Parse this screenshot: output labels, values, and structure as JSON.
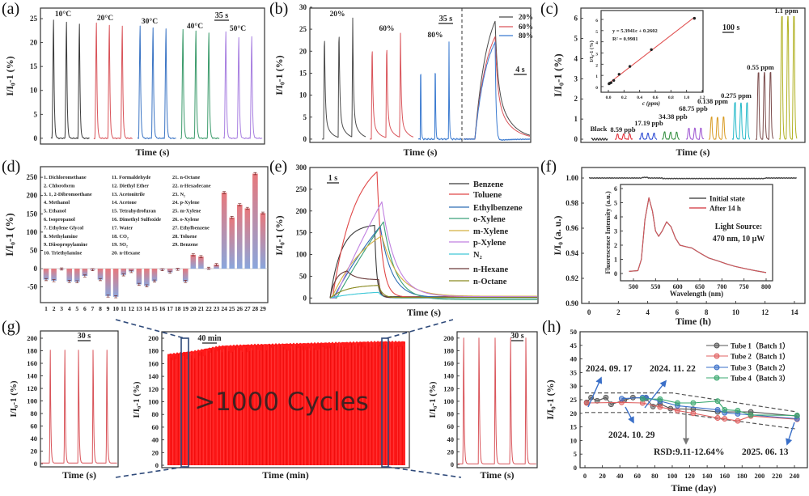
{
  "figure": {
    "panel_labels": [
      "(a)",
      "(b)",
      "(c)",
      "(d)",
      "(e)",
      "(f)",
      "(g)",
      "(h)"
    ]
  },
  "chart_data": [
    {
      "type": "line",
      "ylabel": "I/I₀-1 (%)",
      "xlabel": "Time (s)",
      "ylim": [
        -1,
        27
      ],
      "yticks": [
        "0",
        "5",
        "10",
        "15",
        "20",
        "25"
      ],
      "scale_bar": "35 s",
      "series": [
        {
          "name": "10°C",
          "color": "#3c3c3c",
          "peaks": [
            24.7,
            24.2,
            23.9
          ]
        },
        {
          "name": "20°C",
          "color": "#d9545a",
          "peaks": [
            24.1,
            23.6,
            23.4
          ]
        },
        {
          "name": "30°C",
          "color": "#3a74c4",
          "peaks": [
            23.5,
            23.0,
            22.8
          ]
        },
        {
          "name": "40°C",
          "color": "#3a9a6a",
          "peaks": [
            22.7,
            22.5,
            22.0
          ]
        },
        {
          "name": "50°C",
          "color": "#a77ee0",
          "peaks": [
            22.3,
            21.0,
            21.3
          ]
        }
      ]
    },
    {
      "type": "line",
      "ylabel": "I/I₀-1 (%)",
      "xlabel": "Time (s)",
      "ylim": [
        0,
        30
      ],
      "yticks": [
        "0",
        "5",
        "10",
        "15",
        "20",
        "25",
        "30"
      ],
      "scale_bar_left": "35 s",
      "scale_bar_right": "4 s",
      "legend_position": "top-right",
      "series": [
        {
          "name": "20%",
          "color": "#4a4a4a",
          "peaks": [
            26.3,
            27.0,
            27.1
          ],
          "zoom_peak": 26.8
        },
        {
          "name": "60%",
          "color": "#d9545a",
          "peaks": [
            23.5,
            23.5,
            23.7
          ],
          "zoom_peak": 23.3
        },
        {
          "name": "80%",
          "color": "#3a7ad0",
          "peaks": [
            22.1,
            22.2,
            22.3
          ],
          "zoom_peak": 22.0
        }
      ]
    },
    {
      "type": "line",
      "ylabel": "I/I₀-1 (%)",
      "xlabel": "Time (s)",
      "ylim": [
        0,
        6.5
      ],
      "yticks": [
        "0",
        "1",
        "2",
        "3",
        "4",
        "5",
        "6"
      ],
      "scale_bar": "100 s",
      "series": [
        {
          "name": "Black",
          "color": "#222222",
          "peak": 0.05
        },
        {
          "name": "8.59 ppb",
          "color": "#e0202a",
          "peak": 0.25
        },
        {
          "name": "17.19 ppb",
          "color": "#2040d0",
          "peak": 0.3
        },
        {
          "name": "34.38 ppb",
          "color": "#2e8b3a",
          "peak": 0.35
        },
        {
          "name": "68.75 ppb",
          "color": "#9b4fd0",
          "peak": 0.55
        },
        {
          "name": "0.138 ppm",
          "color": "#d89a20",
          "peak": 1.1
        },
        {
          "name": "0.275 ppm",
          "color": "#20b8c8",
          "peak": 1.8
        },
        {
          "name": "0.55 ppm",
          "color": "#7a4a4a",
          "peak": 3.3
        },
        {
          "name": "1.1 ppm",
          "color": "#b0b020",
          "peak": 6.1
        }
      ],
      "inset": {
        "type": "scatter",
        "xlabel": "c (ppm)",
        "ylabel": "I/I₀-1 (%)",
        "xlim": [
          0,
          1.2
        ],
        "ylim": [
          0,
          6.5
        ],
        "xticks": [
          "0.0",
          "0.2",
          "0.4",
          "0.6",
          "0.8",
          "1.0",
          "1.2"
        ],
        "yticks": [
          "0",
          "1",
          "2",
          "3",
          "4",
          "5",
          "6"
        ],
        "x": [
          0.00859,
          0.01719,
          0.03438,
          0.06875,
          0.1375,
          0.275,
          0.55,
          1.1
        ],
        "y": [
          0.25,
          0.3,
          0.35,
          0.55,
          1.1,
          1.8,
          3.3,
          6.1
        ],
        "fit": {
          "slope": 5.3941,
          "intercept": 0.2602,
          "color": "#e05050"
        },
        "equation": "y = 5.3941c + 0.2602",
        "r2": "R² = 0.9981"
      }
    },
    {
      "type": "bar",
      "ylabel": "I/I₀-1 (%)",
      "ylim": [
        -90,
        275
      ],
      "yticks": [
        "-50",
        "0",
        "50",
        "100",
        "150",
        "200",
        "250"
      ],
      "categories": [
        "1",
        "2",
        "3",
        "4",
        "5",
        "6",
        "7",
        "8",
        "9",
        "10",
        "11",
        "12",
        "13",
        "14",
        "15",
        "16",
        "17",
        "18",
        "19",
        "20",
        "21",
        "22",
        "23",
        "24",
        "25",
        "26",
        "27",
        "28",
        "29"
      ],
      "values": [
        -30,
        -33,
        -1,
        -35,
        -36,
        -20,
        -3,
        -30,
        -75,
        -77,
        -17,
        -8,
        -43,
        -47,
        -34,
        -3,
        -10,
        -2,
        -35,
        38,
        33,
        1,
        11,
        208,
        140,
        175,
        165,
        260,
        152
      ],
      "bar_gradient": [
        "#e8787c",
        "#8aa6dc"
      ],
      "legend": [
        "1. Dichloromethane",
        "2. Chloroform",
        "3. 1, 2-Dibromoethane",
        "4. Methanol",
        "5. Ethanol",
        "6. Isopropanol",
        "7. Ethylene Glycol",
        "8. Methylamine",
        "9. Diisopropylamine",
        "10. Triethylamine",
        "11. Formaldehyde",
        "12. Diethyl Ether",
        "13. Acetonitrile",
        "14. Acetone",
        "15. Tetrahydrofuran",
        "16. Dimethyl Sulfoxide",
        "17. Water",
        "18. CO₂",
        "19. SO₂",
        "20. n-Hexane",
        "21. n-Octane",
        "22. n-Hexadecane",
        "23. N₂",
        "24. p-Xylene",
        "25. m-Xylene",
        "26. o-Xylene",
        "27. Ethylbenzene",
        "28. Toluene",
        "29. Benzene"
      ]
    },
    {
      "type": "line",
      "ylabel": "I/I₀-1 (%)",
      "xlabel": "Time (s)",
      "ylim": [
        -10,
        300
      ],
      "yticks": [
        "0",
        "50",
        "100",
        "150",
        "200",
        "250",
        "300"
      ],
      "scale_bar": "1 s",
      "legend_position": "right",
      "series": [
        {
          "name": "Benzene",
          "color": "#3a3a3a",
          "peak": 167
        },
        {
          "name": "Toluene",
          "color": "#e04848",
          "peak": 290
        },
        {
          "name": "Ethylbenzene",
          "color": "#2f6db5",
          "peak": 165
        },
        {
          "name": "o-Xylene",
          "color": "#3aa07a",
          "peak": 175
        },
        {
          "name": "m-Xylene",
          "color": "#d4b040",
          "peak": 143
        },
        {
          "name": "p-Xylene",
          "color": "#c080e0",
          "peak": 221
        },
        {
          "name": "N₂",
          "color": "#40c8d8",
          "peak": 13
        },
        {
          "name": "n-Hexane",
          "color": "#6a3a3a",
          "peak": 62
        },
        {
          "name": "n-Octane",
          "color": "#8a8a20",
          "peak": 29
        }
      ]
    },
    {
      "type": "line",
      "ylabel": "I/I₀ (a. u.)",
      "xlabel": "Time (h)",
      "xlim": [
        0,
        14.2
      ],
      "ylim": [
        0.9,
        1.005
      ],
      "xticks": [
        "0",
        "2",
        "4",
        "6",
        "8",
        "10",
        "12",
        "14"
      ],
      "yticks": [
        "0.90",
        "0.92",
        "0.94",
        "0.96",
        "0.98",
        "1.00"
      ],
      "value": 1.0,
      "inset": {
        "type": "line",
        "xlabel": "Wavelength (nm)",
        "ylabel": "Fluorescence Intensity (a.u.)",
        "xticks": [
          "500",
          "550",
          "600",
          "650",
          "700",
          "750",
          "800"
        ],
        "yticks": [
          "0",
          "1",
          "2",
          "3",
          "4",
          "5",
          "6"
        ],
        "x": [
          490,
          510,
          518,
          526,
          535,
          543,
          550,
          557,
          565,
          575,
          585,
          595,
          605,
          620,
          632,
          650,
          670,
          690,
          710,
          730,
          750,
          775,
          800
        ],
        "y": [
          0.15,
          0.2,
          1.0,
          3.8,
          5.35,
          4.4,
          3.0,
          2.62,
          3.0,
          3.65,
          3.3,
          2.5,
          2.0,
          1.88,
          1.8,
          1.45,
          1.1,
          0.9,
          0.68,
          0.5,
          0.36,
          0.2,
          0.06
        ],
        "series": [
          {
            "name": "Initial state",
            "color": "#555555"
          },
          {
            "name": "After 14 h",
            "color": "#d9545a"
          }
        ],
        "annotation": [
          "Light Source:",
          "470 nm, 10 μW"
        ]
      }
    },
    {
      "type": "line",
      "left": {
        "ylabel": "I/I₀-1 (%)",
        "xlabel": "Time (s)",
        "yticks": [
          "0",
          "20",
          "40",
          "60",
          "80",
          "100",
          "120",
          "140",
          "160",
          "180",
          "200"
        ],
        "peaks": [
          180,
          180,
          180,
          180,
          180
        ],
        "scale_bar": "30 s",
        "color": "#d9545a"
      },
      "main": {
        "ylabel": "I/I₀-1 (%)",
        "xlabel": "Time (min)",
        "yticks": [
          "0",
          "20",
          "40",
          "60",
          "80",
          "100",
          "120",
          "140",
          "160",
          "180",
          "200"
        ],
        "cycle_peaks_trend": [
          175,
          180,
          188,
          190,
          191,
          192,
          193,
          194,
          195,
          195
        ],
        "annotation": ">1000 Cycles",
        "scale_bar": "40 min",
        "color": "#ff1a1a",
        "highlight_color": "#2f4a7a"
      },
      "right": {
        "ylabel": "I/I₀-1 (%)",
        "xlabel": "Time (s)",
        "yticks": [
          "0",
          "20",
          "40",
          "60",
          "80",
          "100",
          "120",
          "140",
          "160",
          "180",
          "200"
        ],
        "peaks": [
          199,
          199,
          199,
          199,
          199
        ],
        "scale_bar": "30 s",
        "color": "#d9545a"
      }
    },
    {
      "type": "line",
      "ylabel": "I/I₀-1 (%)",
      "xlabel": "Time (day)",
      "xlim": [
        0,
        245
      ],
      "ylim": [
        0,
        50
      ],
      "xticks": [
        "0",
        "20",
        "40",
        "60",
        "80",
        "100",
        "120",
        "140",
        "160",
        "180",
        "200",
        "220",
        "240"
      ],
      "yticks": [
        "0",
        "5",
        "10",
        "15",
        "20",
        "25",
        "30",
        "35",
        "40",
        "45",
        "50"
      ],
      "legend_position": "top-right",
      "series": [
        {
          "name": "Tube 1（Batch 1）",
          "color": "#555555",
          "points": [
            [
              2,
              24
            ],
            [
              7,
              25.8
            ],
            [
              14,
              24.6
            ],
            [
              24,
              25.8
            ],
            [
              30,
              23.3
            ],
            [
              45,
              24.8
            ],
            [
              55,
              25.8
            ],
            [
              70,
              25.5
            ],
            [
              78,
              22.5
            ],
            [
              86,
              23.5
            ],
            [
              98,
              21.7
            ],
            [
              124,
              21.5
            ],
            [
              152,
              20.5
            ],
            [
              190,
              20.5
            ],
            [
              243,
              19
            ]
          ]
        },
        {
          "name": "Tube 2（Batch 1）",
          "color": "#e06060",
          "points": [
            [
              2,
              23.8
            ],
            [
              42,
              24
            ],
            [
              66,
              23.8
            ],
            [
              86,
              22.3
            ],
            [
              106,
              21
            ],
            [
              124,
              20
            ],
            [
              152,
              18.3
            ],
            [
              160,
              18
            ],
            [
              175,
              17.2
            ],
            [
              190,
              19
            ],
            [
              243,
              17.8
            ]
          ]
        },
        {
          "name": "Tube 3（Batch 2）",
          "color": "#3a6fc8",
          "points": [
            [
              42,
              25.4
            ],
            [
              66,
              25.8
            ],
            [
              70,
              25.8
            ],
            [
              86,
              24.5
            ],
            [
              106,
              22.8
            ],
            [
              152,
              21.3
            ],
            [
              160,
              20.2
            ],
            [
              175,
              19.8
            ],
            [
              243,
              18
            ]
          ]
        },
        {
          "name": "Tube 4（Batch 3）",
          "color": "#3aa870",
          "points": [
            [
              66,
              25.3
            ],
            [
              86,
              25.2
            ],
            [
              106,
              23.8
            ],
            [
              124,
              23.8
            ],
            [
              152,
              24.5
            ],
            [
              160,
              21.3
            ],
            [
              175,
              21
            ],
            [
              190,
              19.4
            ],
            [
              243,
              19.2
            ]
          ]
        }
      ],
      "bounds": {
        "upper": [
          [
            0,
            27.5
          ],
          [
            100,
            27.5
          ],
          [
            243,
            20.5
          ]
        ],
        "lower": [
          [
            0,
            20.3
          ],
          [
            100,
            20.3
          ],
          [
            243,
            14.2
          ]
        ]
      },
      "annotations": [
        "2024. 09. 17",
        "2024. 11. 22",
        "2024. 10. 29",
        "RSD:9.11-12.64%",
        "2025. 06. 13"
      ],
      "rsd_color": "#c0282d"
    }
  ]
}
